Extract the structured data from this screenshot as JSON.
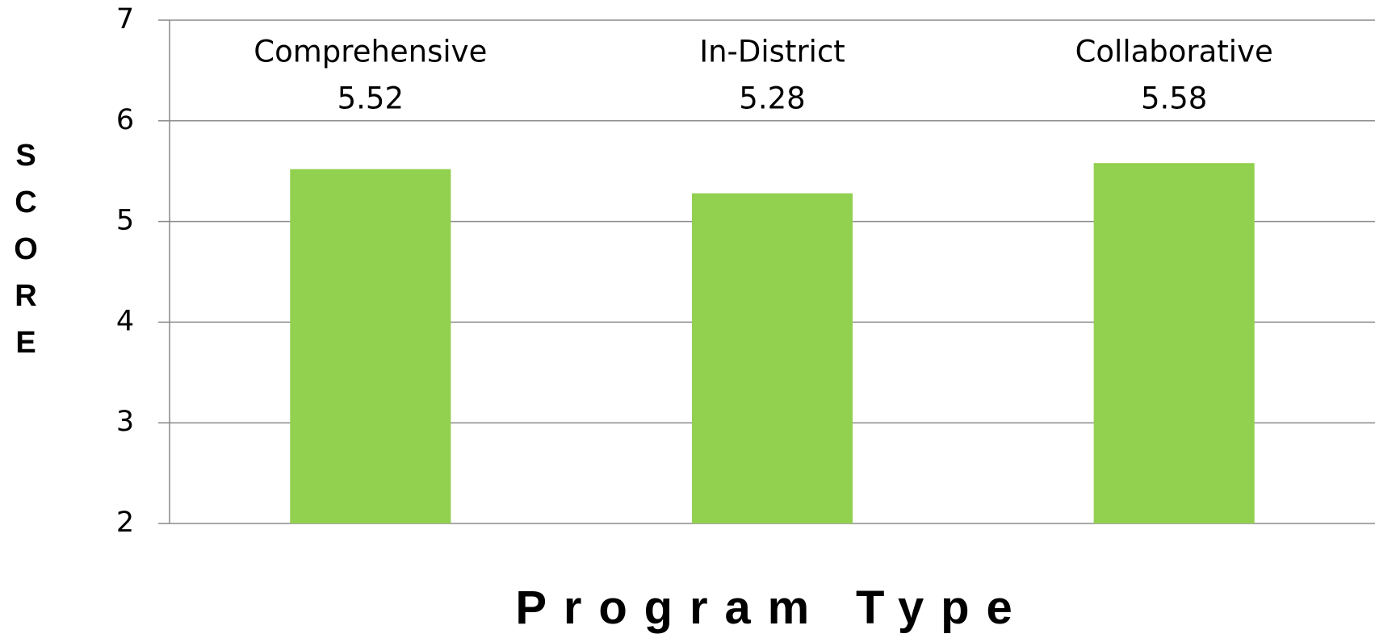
{
  "chart_data": {
    "type": "bar",
    "x_label": "Program Type",
    "y_label": "SCORE",
    "categories": [
      "Comprehensive",
      "In-District",
      "Collaborative"
    ],
    "values": [
      5.52,
      5.28,
      5.58
    ],
    "color": "#92d050",
    "ylim": [
      2,
      7
    ],
    "yticks": [
      2,
      3,
      4,
      5,
      6,
      7
    ],
    "grid": true
  }
}
